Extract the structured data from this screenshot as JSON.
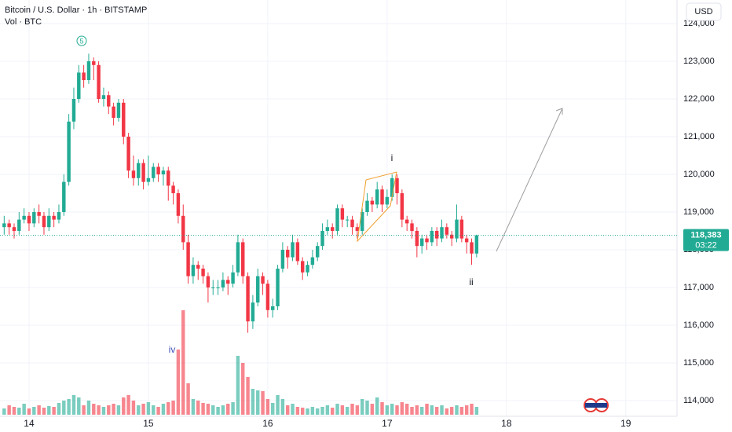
{
  "chart_data": {
    "type": "candlestick",
    "title": "Bitcoin / U.S. Dollar · 1h · BITSTAMP",
    "subtitle": "Vol · BTC",
    "currency": "USD",
    "price_label": "118,383",
    "countdown": "03:22",
    "annotations": [
      "5",
      "i",
      "ii",
      "iv"
    ],
    "up_color": "#22ab94",
    "down_color": "#f23645",
    "xlim": [
      -5.84,
      130.3
    ],
    "ylim": [
      113583,
      124625
    ],
    "vlim": [
      0,
      140
    ],
    "xticks": [
      {
        "value": 0,
        "label": "14"
      },
      {
        "value": 24,
        "label": "15"
      },
      {
        "value": 48,
        "label": "16"
      },
      {
        "value": 72,
        "label": "17"
      },
      {
        "value": 96,
        "label": "18"
      },
      {
        "value": 120,
        "label": "19"
      }
    ],
    "yticks": [
      {
        "value": 114000,
        "label": "114,000"
      },
      {
        "value": 115000,
        "label": "115,000"
      },
      {
        "value": 116000,
        "label": "116,000"
      },
      {
        "value": 117000,
        "label": "117,000"
      },
      {
        "value": 118000,
        "label": "118,000"
      },
      {
        "value": 119000,
        "label": "119,000"
      },
      {
        "value": 120000,
        "label": "120,000"
      },
      {
        "value": 121000,
        "label": "121,000"
      },
      {
        "value": 122000,
        "label": "122,000"
      },
      {
        "value": 123000,
        "label": "123,000"
      },
      {
        "value": 124000,
        "label": "124,000"
      }
    ],
    "grid": true,
    "x": [
      -5,
      -4,
      -3,
      -2,
      -1,
      0,
      1,
      2,
      3,
      4,
      5,
      6,
      7,
      8,
      9,
      10,
      11,
      12,
      13,
      14,
      15,
      16,
      17,
      18,
      19,
      20,
      21,
      22,
      23,
      24,
      25,
      26,
      27,
      28,
      29,
      30,
      31,
      32,
      33,
      34,
      35,
      36,
      37,
      38,
      39,
      40,
      41,
      42,
      43,
      44,
      45,
      46,
      47,
      48,
      49,
      50,
      51,
      52,
      53,
      54,
      55,
      56,
      57,
      58,
      59,
      60,
      61,
      62,
      63,
      64,
      65,
      66,
      67,
      68,
      69,
      70,
      71,
      72,
      73,
      74,
      75,
      76,
      77,
      78,
      79,
      80,
      81,
      82,
      83,
      84,
      85,
      86,
      87,
      88,
      89,
      90
    ],
    "open": [
      118600,
      118700,
      118600,
      118500,
      118800,
      118900,
      118700,
      119000,
      118900,
      118600,
      118900,
      118800,
      119000,
      119800,
      121400,
      122000,
      122700,
      122500,
      123000,
      122900,
      122000,
      122100,
      121800,
      121500,
      121900,
      121000,
      120100,
      119900,
      120300,
      119800,
      119900,
      120200,
      120000,
      120100,
      119700,
      119500,
      118900,
      118200,
      117300,
      117600,
      117500,
      117300,
      117000,
      117000,
      117000,
      117200,
      117100,
      117400,
      118200,
      117300,
      116100,
      116600,
      117300,
      117100,
      116400,
      116500,
      117500,
      118000,
      117800,
      118200,
      117700,
      117400,
      117600,
      117800,
      118100,
      118500,
      118600,
      118500,
      119100,
      118800,
      118800,
      118600,
      118500,
      119000,
      119300,
      119200,
      119600,
      119200,
      119400,
      119900,
      119500,
      118800,
      118700,
      118500,
      118100,
      118300,
      118200,
      118500,
      118300,
      118600,
      118400,
      118300,
      118800,
      118300,
      118200,
      117900
    ],
    "high": [
      118900,
      118800,
      118700,
      119000,
      119100,
      119000,
      119100,
      119200,
      119000,
      119100,
      119000,
      119200,
      120000,
      121600,
      122300,
      122900,
      122900,
      123200,
      123100,
      123000,
      122300,
      122200,
      121900,
      122000,
      122000,
      121100,
      120500,
      120400,
      120400,
      120500,
      120300,
      120300,
      120200,
      120200,
      119800,
      119600,
      119200,
      118400,
      117800,
      117700,
      117600,
      117400,
      117200,
      117200,
      117400,
      117300,
      117600,
      118400,
      118300,
      117400,
      116800,
      117500,
      117400,
      117200,
      116700,
      117600,
      118200,
      118100,
      118400,
      118300,
      117800,
      117700,
      118000,
      118200,
      118700,
      118800,
      118700,
      119200,
      119200,
      118900,
      118900,
      118700,
      119100,
      119500,
      119400,
      119800,
      119700,
      119600,
      120000,
      120000,
      119600,
      118900,
      118800,
      118600,
      118400,
      118400,
      118600,
      118600,
      118800,
      118700,
      118500,
      119200,
      118900,
      118400,
      118300,
      118400
    ],
    "low": [
      118400,
      118400,
      118300,
      118400,
      118700,
      118500,
      118600,
      118700,
      118400,
      118500,
      118600,
      118700,
      118900,
      119700,
      121200,
      121900,
      122300,
      122400,
      122500,
      121900,
      121800,
      121600,
      121300,
      121400,
      120800,
      119900,
      119700,
      119700,
      119600,
      119700,
      119800,
      119800,
      119700,
      119300,
      119200,
      118700,
      118000,
      117100,
      117100,
      117200,
      117100,
      116600,
      116800,
      116800,
      116900,
      116800,
      117000,
      117300,
      117100,
      115800,
      115900,
      116500,
      116800,
      116200,
      116200,
      116400,
      117400,
      117500,
      117700,
      117600,
      117200,
      117300,
      117500,
      117700,
      118000,
      118400,
      118300,
      118400,
      118600,
      118600,
      118400,
      118300,
      118400,
      118900,
      119000,
      119100,
      119000,
      119100,
      119300,
      119200,
      118600,
      118500,
      118300,
      117800,
      117900,
      118000,
      118100,
      118100,
      118200,
      118300,
      118100,
      118200,
      118200,
      117900,
      117600,
      117800
    ],
    "close": [
      118700,
      118600,
      118500,
      118800,
      118900,
      118700,
      119000,
      118900,
      118600,
      118900,
      118800,
      119000,
      119800,
      121400,
      122000,
      122700,
      122500,
      123000,
      122900,
      122000,
      122100,
      121800,
      121500,
      121900,
      121000,
      120100,
      119900,
      120300,
      119800,
      119900,
      120200,
      120000,
      120100,
      119700,
      119500,
      118900,
      118200,
      117300,
      117600,
      117500,
      117300,
      117000,
      117000,
      117000,
      117200,
      117100,
      117400,
      118200,
      117300,
      116100,
      116600,
      117300,
      117100,
      116400,
      116500,
      117500,
      118000,
      117800,
      118200,
      117700,
      117400,
      117600,
      117800,
      118100,
      118500,
      118600,
      118500,
      119100,
      118800,
      118800,
      118600,
      118500,
      119000,
      119300,
      119200,
      119600,
      119200,
      119400,
      119900,
      119500,
      118800,
      118700,
      118500,
      118100,
      118300,
      118200,
      118500,
      118300,
      118600,
      118400,
      118300,
      118800,
      118300,
      118200,
      117900,
      118383
    ],
    "volume": [
      8,
      12,
      10,
      9,
      14,
      8,
      10,
      12,
      9,
      11,
      10,
      15,
      18,
      20,
      25,
      22,
      12,
      18,
      14,
      12,
      10,
      12,
      14,
      12,
      22,
      25,
      18,
      12,
      14,
      16,
      12,
      10,
      14,
      16,
      18,
      83,
      133,
      40,
      20,
      18,
      15,
      14,
      12,
      10,
      12,
      14,
      16,
      75,
      66,
      48,
      33,
      31,
      30,
      20,
      15,
      25,
      20,
      12,
      14,
      10,
      9,
      8,
      10,
      8,
      10,
      12,
      9,
      14,
      12,
      10,
      14,
      12,
      20,
      18,
      14,
      22,
      16,
      12,
      14,
      12,
      16,
      14,
      10,
      12,
      10,
      14,
      12,
      10,
      12,
      8,
      10,
      12,
      10,
      12,
      14,
      10
    ]
  }
}
